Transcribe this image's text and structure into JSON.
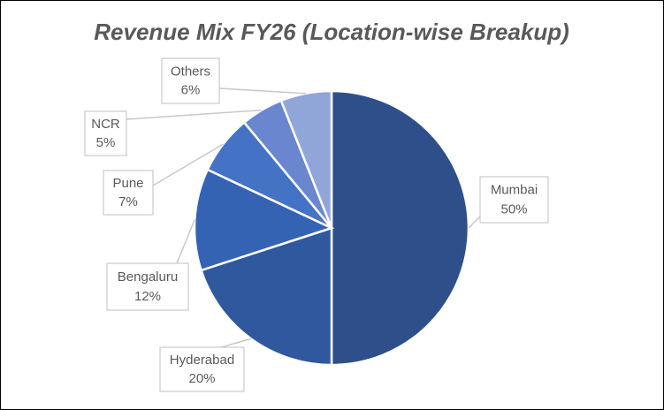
{
  "chart_data": {
    "type": "pie",
    "title": "Revenue Mix FY26 (Location-wise Breakup)",
    "categories": [
      "Mumbai",
      "Hyderabad",
      "Bengaluru",
      "Pune",
      "NCR",
      "Others"
    ],
    "values": [
      50,
      20,
      12,
      7,
      5,
      6
    ],
    "value_labels": [
      "50%",
      "20%",
      "12%",
      "7%",
      "5%",
      "6%"
    ],
    "colors": [
      "#2e4f8a",
      "#30589f",
      "#3563b3",
      "#4472c4",
      "#6a86ce",
      "#91a6d8"
    ]
  }
}
